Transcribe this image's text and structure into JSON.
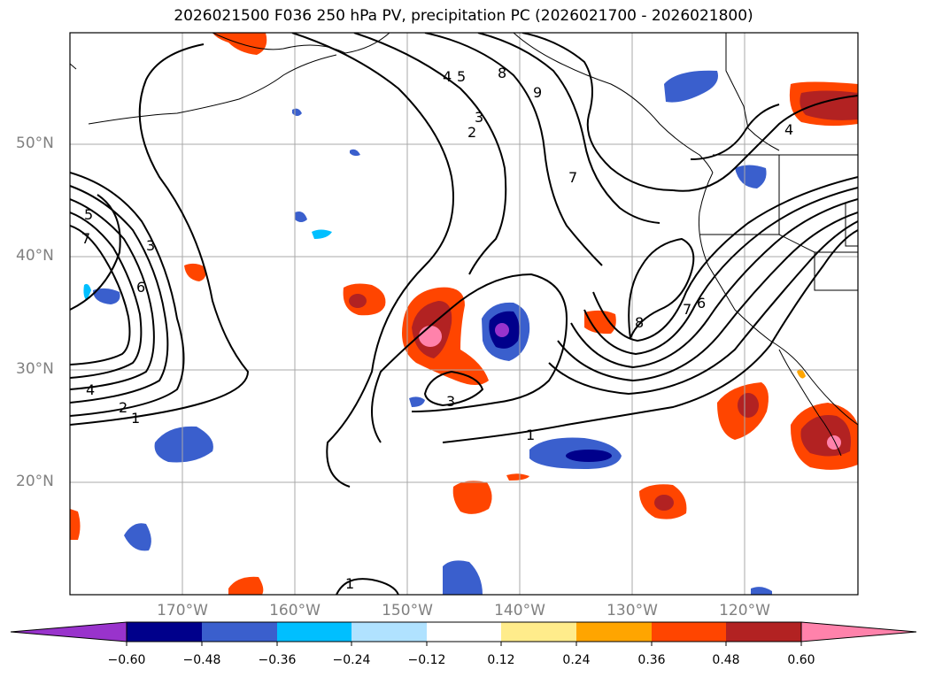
{
  "title": "2026021500 F036 250 hPa PV, precipitation PC (2026021700 - 2026021800)",
  "map": {
    "lat_labels": [
      "50°N",
      "40°N",
      "30°N",
      "20°N"
    ],
    "lon_labels": [
      "170°W",
      "160°W",
      "150°W",
      "140°W",
      "130°W",
      "120°W"
    ],
    "lon_range": [
      -180,
      -110
    ],
    "lat_range": [
      10,
      60
    ],
    "contour_labels": [
      "4",
      "5",
      "8",
      "9",
      "3",
      "2",
      "7",
      "5",
      "7",
      "3",
      "6",
      "4",
      "2",
      "1",
      "3",
      "1",
      "8",
      "7",
      "6",
      "4",
      "1"
    ]
  },
  "colorbar": {
    "ticks": [
      "−0.60",
      "−0.48",
      "−0.36",
      "−0.24",
      "−0.12",
      "0.12",
      "0.24",
      "0.36",
      "0.48",
      "0.60"
    ],
    "colors": [
      "#9933cc",
      "#00008b",
      "#3a5fcd",
      "#00bfff",
      "#b0e2ff",
      "#ffffff",
      "#ffec8b",
      "#ffa500",
      "#ff4500",
      "#b22222",
      "#ff82ab"
    ]
  }
}
